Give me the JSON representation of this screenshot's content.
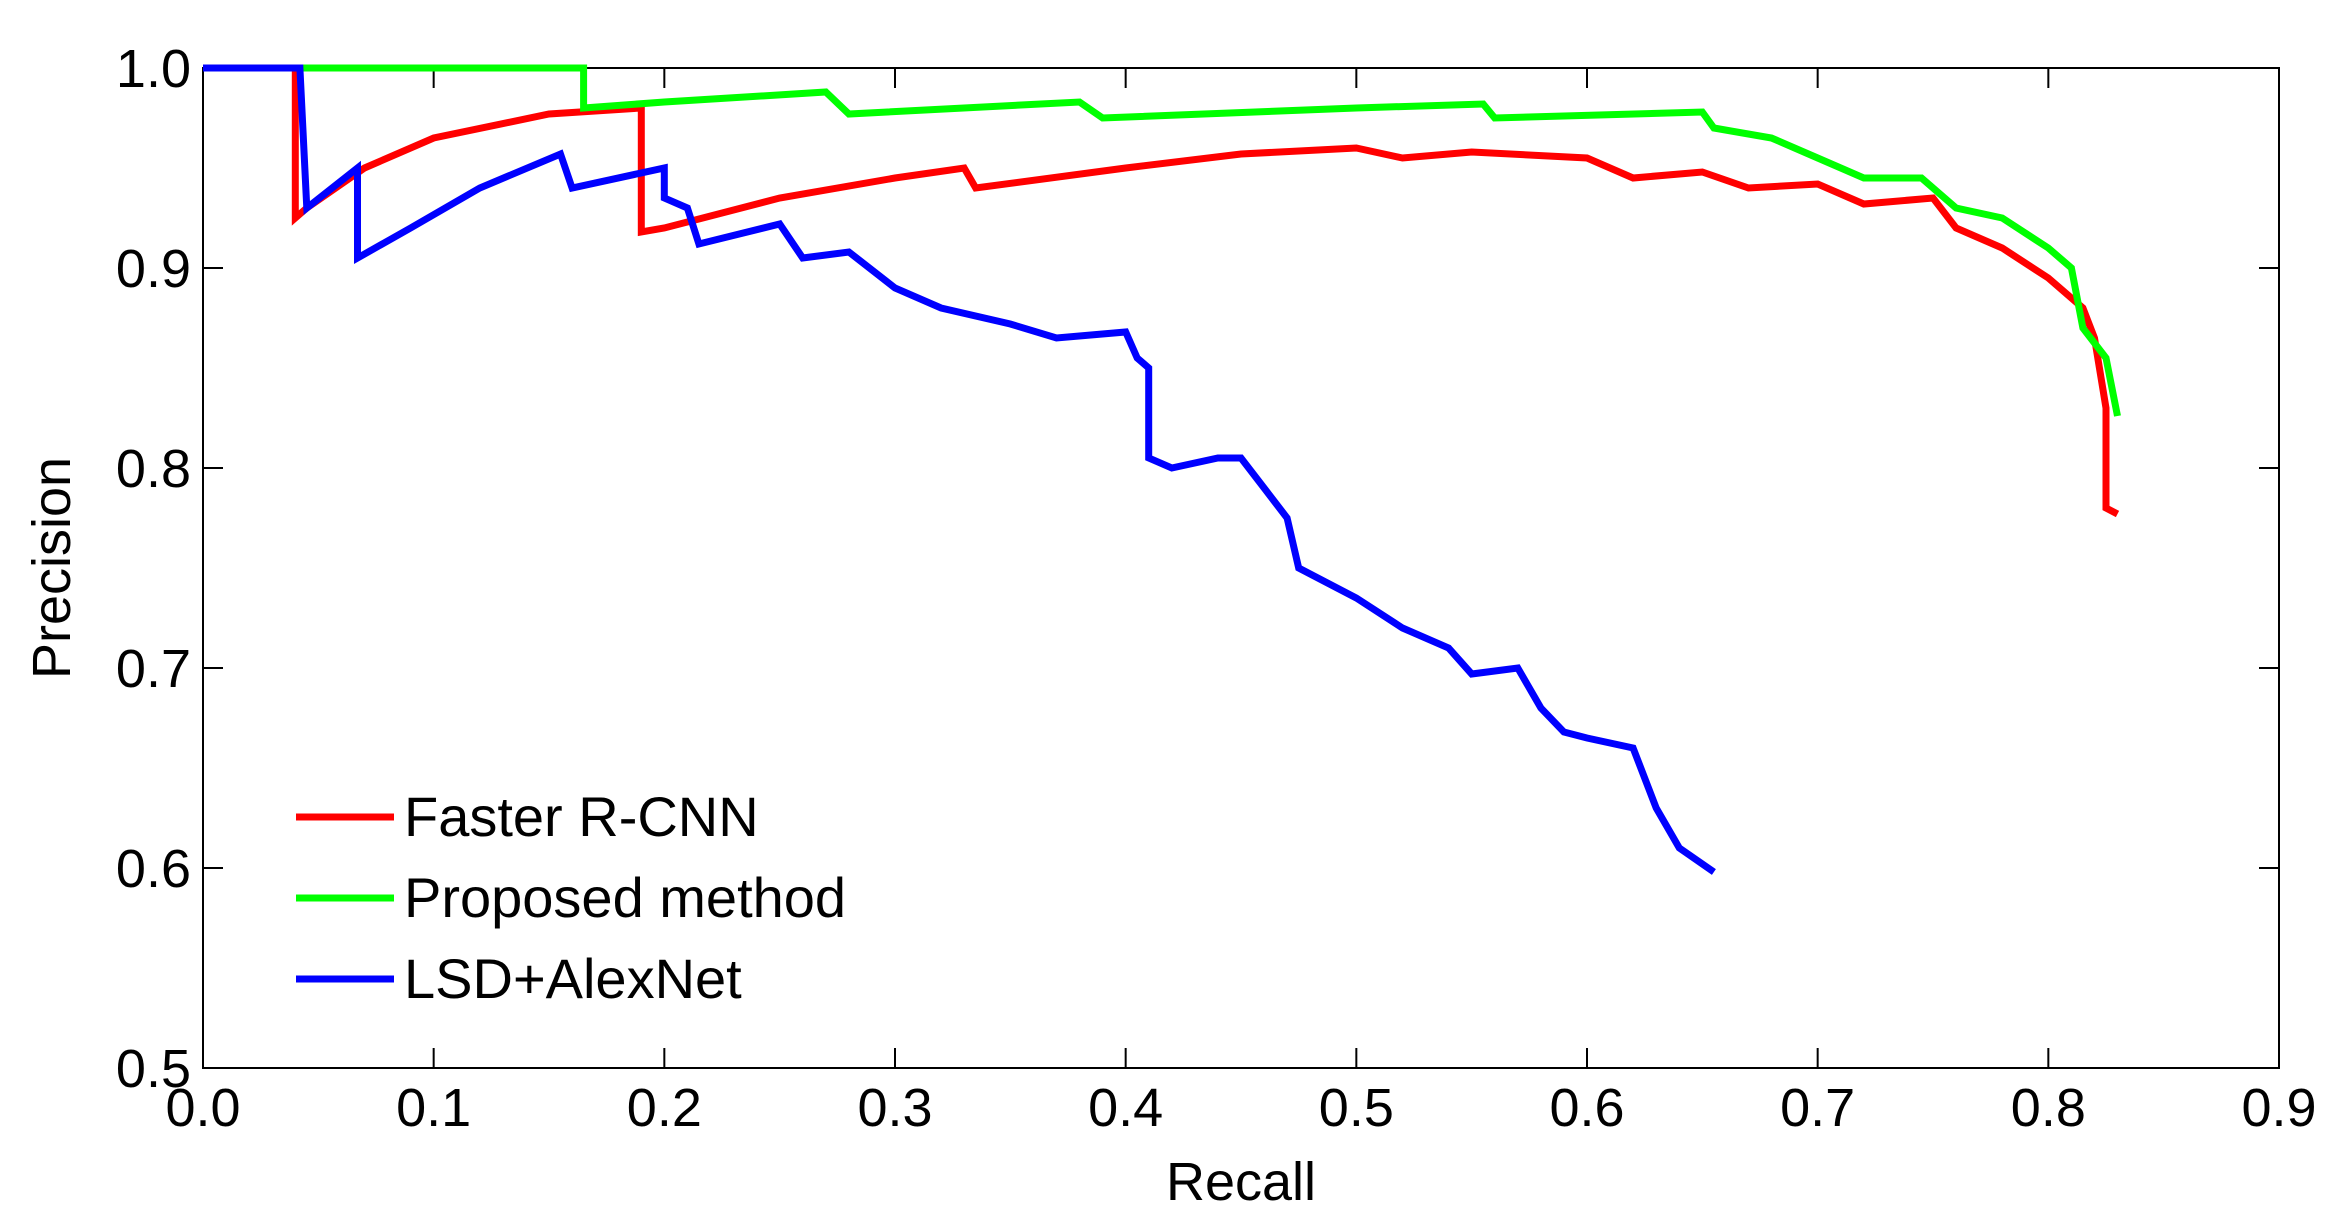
{
  "chart_data": {
    "type": "line",
    "x_label": "Recall",
    "y_label": "Precision",
    "xlim": [
      0,
      0.9
    ],
    "ylim": [
      0.5,
      1
    ],
    "xticks": [
      {
        "value": 0,
        "label": "0.0"
      },
      0.1,
      0.2,
      0.3,
      0.4,
      0.5,
      0.6,
      0.7,
      0.8,
      0.9
    ],
    "yticks": [
      0.5,
      0.6,
      0.7,
      0.8,
      0.9,
      {
        "value": 1,
        "label": "1.0"
      }
    ],
    "grid": false,
    "legend": "lower left",
    "series": [
      {
        "name": "Faster R-CNN",
        "color": "#ff0000",
        "x": [
          0,
          0.04,
          0.04,
          0.045,
          0.07,
          0.1,
          0.15,
          0.19,
          0.19,
          0.2,
          0.25,
          0.3,
          0.33,
          0.335,
          0.4,
          0.45,
          0.5,
          0.52,
          0.55,
          0.6,
          0.62,
          0.65,
          0.67,
          0.7,
          0.72,
          0.75,
          0.76,
          0.78,
          0.8,
          0.815,
          0.82,
          0.825,
          0.825,
          0.83
        ],
        "values": [
          1,
          1,
          0.925,
          0.93,
          0.95,
          0.965,
          0.977,
          0.98,
          0.918,
          0.92,
          0.935,
          0.945,
          0.95,
          0.94,
          0.95,
          0.957,
          0.96,
          0.955,
          0.958,
          0.955,
          0.945,
          0.948,
          0.94,
          0.942,
          0.932,
          0.935,
          0.92,
          0.91,
          0.895,
          0.88,
          0.865,
          0.83,
          0.78,
          0.777
        ]
      },
      {
        "name": "Proposed method",
        "color": "#00ff00",
        "x": [
          0,
          0.165,
          0.165,
          0.2,
          0.27,
          0.28,
          0.38,
          0.39,
          0.5,
          0.555,
          0.56,
          0.65,
          0.655,
          0.68,
          0.7,
          0.72,
          0.745,
          0.76,
          0.78,
          0.8,
          0.81,
          0.815,
          0.825,
          0.83
        ],
        "values": [
          1,
          1,
          0.98,
          0.983,
          0.988,
          0.977,
          0.983,
          0.975,
          0.98,
          0.982,
          0.975,
          0.978,
          0.97,
          0.965,
          0.955,
          0.945,
          0.945,
          0.93,
          0.925,
          0.91,
          0.9,
          0.87,
          0.855,
          0.826
        ]
      },
      {
        "name": "LSD+AlexNet",
        "color": "#0000ff",
        "x": [
          0,
          0.042,
          0.045,
          0.067,
          0.067,
          0.09,
          0.12,
          0.155,
          0.16,
          0.2,
          0.2,
          0.21,
          0.215,
          0.25,
          0.26,
          0.28,
          0.3,
          0.32,
          0.35,
          0.37,
          0.4,
          0.405,
          0.41,
          0.41,
          0.42,
          0.44,
          0.45,
          0.46,
          0.47,
          0.475,
          0.5,
          0.52,
          0.54,
          0.55,
          0.57,
          0.58,
          0.59,
          0.6,
          0.62,
          0.63,
          0.64,
          0.655
        ],
        "values": [
          1,
          1,
          0.93,
          0.95,
          0.905,
          0.92,
          0.94,
          0.957,
          0.94,
          0.95,
          0.935,
          0.93,
          0.912,
          0.922,
          0.905,
          0.908,
          0.89,
          0.88,
          0.872,
          0.865,
          0.868,
          0.855,
          0.85,
          0.805,
          0.8,
          0.805,
          0.805,
          0.79,
          0.775,
          0.75,
          0.735,
          0.72,
          0.71,
          0.697,
          0.7,
          0.68,
          0.668,
          0.665,
          0.66,
          0.63,
          0.61,
          0.598
        ]
      }
    ]
  }
}
